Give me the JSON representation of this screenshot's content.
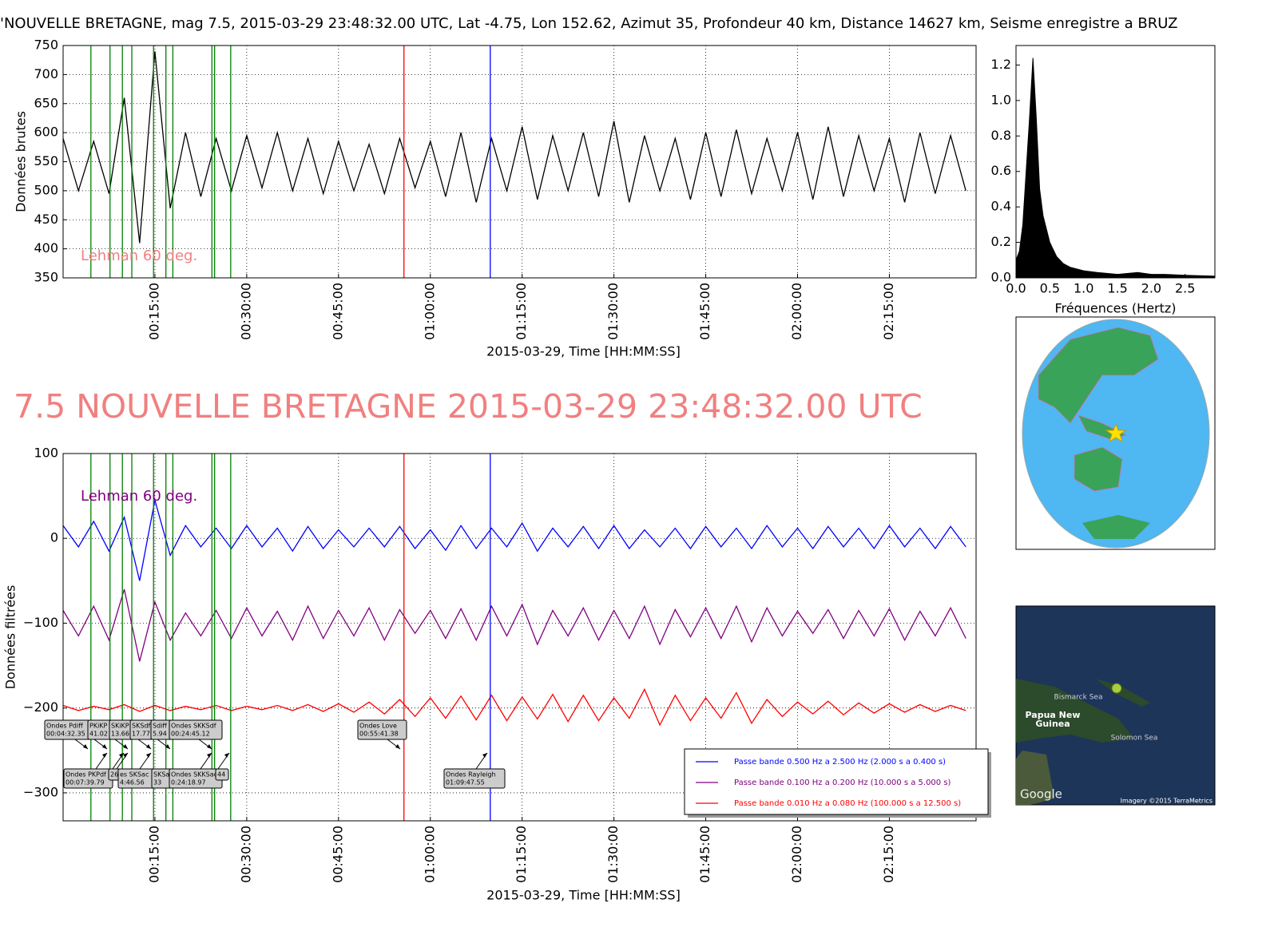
{
  "chart_data": [
    {
      "type": "line",
      "title": "'NOUVELLE BRETAGNE, mag 7.5, 2015-03-29 23:48:32.00 UTC, Lat -4.75, Lon 152.62, Azimut  35, Profondeur 40 km, Distance 14627 km, Seisme enregistre a BRUZ",
      "x_label": "2015-03-29, Time [HH:MM:SS]",
      "y_label": "Données brutes",
      "annotation": "Lehman 60 deg.",
      "annotation_color": "#f08080",
      "xlim": [
        0,
        8950
      ],
      "xticks": [
        {
          "value": 900,
          "label": "00:15:00"
        },
        {
          "value": 1800,
          "label": "00:30:00"
        },
        {
          "value": 2700,
          "label": "00:45:00"
        },
        {
          "value": 3600,
          "label": "01:00:00"
        },
        {
          "value": 4500,
          "label": "01:15:00"
        },
        {
          "value": 5400,
          "label": "01:30:00"
        },
        {
          "value": 6300,
          "label": "01:45:00"
        },
        {
          "value": 7200,
          "label": "02:00:00"
        },
        {
          "value": 8100,
          "label": "02:15:00"
        }
      ],
      "ylim": [
        350,
        750
      ],
      "yticks": [
        350,
        400,
        450,
        500,
        550,
        600,
        650,
        700,
        750
      ],
      "grid": true,
      "vlines": {
        "x": [
          272.35,
          459.79,
          581.02,
          673.66,
          886.56,
          1007.77,
          1075.94,
          1458.97,
          1485.12,
          1643,
          3341.38,
          4187.55
        ],
        "colors": [
          "#008000",
          "#008000",
          "#008000",
          "#008000",
          "#008000",
          "#008000",
          "#008000",
          "#008000",
          "#008000",
          "#008000",
          "#ff0000",
          "#0000ff"
        ]
      },
      "x": [
        0,
        150,
        300,
        450,
        600,
        750,
        900,
        1050,
        1200,
        1350,
        1500,
        1650,
        1800,
        1950,
        2100,
        2250,
        2400,
        2550,
        2700,
        2850,
        3000,
        3150,
        3300,
        3450,
        3600,
        3750,
        3900,
        4050,
        4200,
        4350,
        4500,
        4650,
        4800,
        4950,
        5100,
        5250,
        5400,
        5550,
        5700,
        5850,
        6000,
        6150,
        6300,
        6450,
        6600,
        6750,
        6900,
        7050,
        7200,
        7350,
        7500,
        7650,
        7800,
        7950,
        8100,
        8250,
        8400,
        8550,
        8700,
        8850
      ],
      "series": [
        {
          "color": "#000000",
          "values": [
            590,
            500,
            585,
            495,
            660,
            410,
            740,
            470,
            600,
            490,
            590,
            500,
            595,
            505,
            600,
            500,
            590,
            495,
            585,
            500,
            580,
            495,
            590,
            505,
            585,
            490,
            600,
            480,
            590,
            500,
            610,
            485,
            595,
            500,
            600,
            490,
            620,
            480,
            595,
            500,
            590,
            485,
            600,
            490,
            605,
            495,
            590,
            500,
            600,
            485,
            610,
            490,
            595,
            500,
            590,
            480,
            600,
            495,
            595,
            500
          ]
        }
      ]
    },
    {
      "type": "area",
      "x_label": "Fréquences (Hertz)",
      "xlim": [
        0,
        2.94
      ],
      "xticks": [
        {
          "value": 0,
          "label": "0.0"
        },
        0.5,
        {
          "value": 1,
          "label": "1.0"
        },
        1.5,
        {
          "value": 2,
          "label": "2.0"
        },
        2.5
      ],
      "ylim": [
        0,
        1.31
      ],
      "yticks": [
        {
          "value": 0,
          "label": "0.0"
        },
        0.2,
        0.4,
        0.6,
        0.8,
        {
          "value": 1,
          "label": "1.0"
        },
        1.2
      ],
      "color": "#000000",
      "x": [
        0,
        0.05,
        0.1,
        0.15,
        0.2,
        0.25,
        0.3,
        0.35,
        0.4,
        0.5,
        0.6,
        0.7,
        0.8,
        1.0,
        1.2,
        1.5,
        1.8,
        2.0,
        2.2,
        2.5,
        2.94
      ],
      "values": [
        0.1,
        0.15,
        0.3,
        0.6,
        0.9,
        1.24,
        0.9,
        0.5,
        0.35,
        0.2,
        0.12,
        0.08,
        0.06,
        0.04,
        0.03,
        0.02,
        0.03,
        0.02,
        0.02,
        0.015,
        0.01
      ]
    },
    {
      "type": "line",
      "title": "7.5 NOUVELLE BRETAGNE 2015-03-29 23:48:32.00 UTC",
      "x_label": "2015-03-29, Time [HH:MM:SS]",
      "y_label": "Données filtrées",
      "annotation": "Lehman 60 deg.",
      "annotation_color": "#800080",
      "xlim": [
        0,
        8950
      ],
      "xticks": [
        {
          "value": 900,
          "label": "00:15:00"
        },
        {
          "value": 1800,
          "label": "00:30:00"
        },
        {
          "value": 2700,
          "label": "00:45:00"
        },
        {
          "value": 3600,
          "label": "01:00:00"
        },
        {
          "value": 4500,
          "label": "01:15:00"
        },
        {
          "value": 5400,
          "label": "01:30:00"
        },
        {
          "value": 6300,
          "label": "01:45:00"
        },
        {
          "value": 7200,
          "label": "02:00:00"
        },
        {
          "value": 8100,
          "label": "02:15:00"
        }
      ],
      "ylim": [
        -333,
        100
      ],
      "yticks": [
        {
          "value": -300,
          "label": "−300"
        },
        {
          "value": -200,
          "label": "−200"
        },
        {
          "value": -100,
          "label": "−100"
        },
        0,
        100
      ],
      "grid": true,
      "legend": "lower right",
      "vlines": {
        "x": [
          272.35,
          459.79,
          581.02,
          673.66,
          886.56,
          1007.77,
          1075.94,
          1458.97,
          1485.12,
          1643,
          3341.38,
          4187.55
        ],
        "colors": [
          "#008000",
          "#008000",
          "#008000",
          "#008000",
          "#008000",
          "#008000",
          "#008000",
          "#008000",
          "#008000",
          "#008000",
          "#ff0000",
          "#0000ff"
        ]
      },
      "phase_labels": [
        {
          "lines": [
            "Ondes Pdiff",
            "00:04:32.35"
          ]
        },
        {
          "lines": [
            "PKiKP",
            "41.02"
          ]
        },
        {
          "lines": [
            "SKiKP",
            "13.66"
          ]
        },
        {
          "lines": [
            "SKSdf",
            "17.77"
          ]
        },
        {
          "lines": [
            "Sdiff",
            "5.94"
          ]
        },
        {
          "lines": [
            "Ondes SKKSdf",
            "00:24:45.12"
          ]
        },
        {
          "lines": [
            "Ondes Love",
            "00:55:41.38"
          ]
        },
        {
          "lines": [
            "Ondes PKPdf",
            "00:07:39.79"
          ]
        },
        {
          "lines": [
            "26"
          ]
        },
        {
          "lines": [
            "es SKSac",
            "4:46.56"
          ]
        },
        {
          "lines": [
            "SKSac",
            "33"
          ]
        },
        {
          "lines": [
            "Ondes SKKSac",
            "0:24:18.97"
          ]
        },
        {
          "lines": [
            "44"
          ]
        },
        {
          "lines": [
            "Ondes Rayleigh",
            "01:09:47.55"
          ]
        }
      ],
      "x": [
        0,
        150,
        300,
        450,
        600,
        750,
        900,
        1050,
        1200,
        1350,
        1500,
        1650,
        1800,
        1950,
        2100,
        2250,
        2400,
        2550,
        2700,
        2850,
        3000,
        3150,
        3300,
        3450,
        3600,
        3750,
        3900,
        4050,
        4200,
        4350,
        4500,
        4650,
        4800,
        4950,
        5100,
        5250,
        5400,
        5550,
        5700,
        5850,
        6000,
        6150,
        6300,
        6450,
        6600,
        6750,
        6900,
        7050,
        7200,
        7350,
        7500,
        7650,
        7800,
        7950,
        8100,
        8250,
        8400,
        8550,
        8700,
        8850
      ],
      "series": [
        {
          "name": "Passe bande 0.500 Hz a 2.500 Hz (2.000 s a 0.400 s)",
          "color": "#0000ff",
          "values": [
            15,
            -10,
            20,
            -15,
            25,
            -50,
            45,
            -20,
            15,
            -10,
            12,
            -12,
            15,
            -10,
            12,
            -15,
            14,
            -12,
            10,
            -10,
            12,
            -10,
            14,
            -12,
            10,
            -14,
            15,
            -12,
            12,
            -10,
            18,
            -15,
            12,
            -10,
            14,
            -12,
            15,
            -12,
            10,
            -10,
            12,
            -12,
            14,
            -10,
            12,
            -12,
            15,
            -10,
            12,
            -12,
            14,
            -10,
            12,
            -12,
            15,
            -10,
            12,
            -12,
            14,
            -10
          ]
        },
        {
          "name": "Passe bande 0.100 Hz a 0.200 Hz (10.000 s a 5.000 s)",
          "color": "#800080",
          "values": [
            -85,
            -115,
            -80,
            -120,
            -60,
            -145,
            -75,
            -120,
            -88,
            -115,
            -85,
            -118,
            -82,
            -115,
            -86,
            -120,
            -80,
            -118,
            -85,
            -115,
            -82,
            -120,
            -84,
            -112,
            -85,
            -118,
            -83,
            -120,
            -80,
            -115,
            -78,
            -125,
            -85,
            -115,
            -82,
            -120,
            -85,
            -118,
            -80,
            -125,
            -84,
            -116,
            -82,
            -118,
            -80,
            -122,
            -82,
            -115,
            -86,
            -112,
            -84,
            -118,
            -85,
            -115,
            -83,
            -120,
            -86,
            -115,
            -82,
            -118
          ]
        },
        {
          "name": "Passe bande 0.010 Hz a 0.080 Hz (100.000 s a 12.500 s)",
          "color": "#ff0000",
          "values": [
            -197,
            -203,
            -198,
            -202,
            -196,
            -204,
            -197,
            -203,
            -198,
            -202,
            -197,
            -203,
            -198,
            -202,
            -197,
            -203,
            -196,
            -204,
            -195,
            -205,
            -193,
            -207,
            -190,
            -210,
            -188,
            -212,
            -186,
            -214,
            -185,
            -215,
            -187,
            -213,
            -184,
            -216,
            -185,
            -215,
            -188,
            -212,
            -178,
            -220,
            -185,
            -215,
            -188,
            -212,
            -182,
            -218,
            -190,
            -210,
            -193,
            -207,
            -192,
            -208,
            -194,
            -206,
            -195,
            -205,
            -196,
            -204,
            -197,
            -203
          ]
        }
      ]
    }
  ],
  "maps": {
    "labels": [
      "Bismarck Sea",
      "Papua New",
      "Guinea",
      "Solomon Sea",
      "Google",
      "Imagery ©2015 TerraMetrics"
    ]
  }
}
